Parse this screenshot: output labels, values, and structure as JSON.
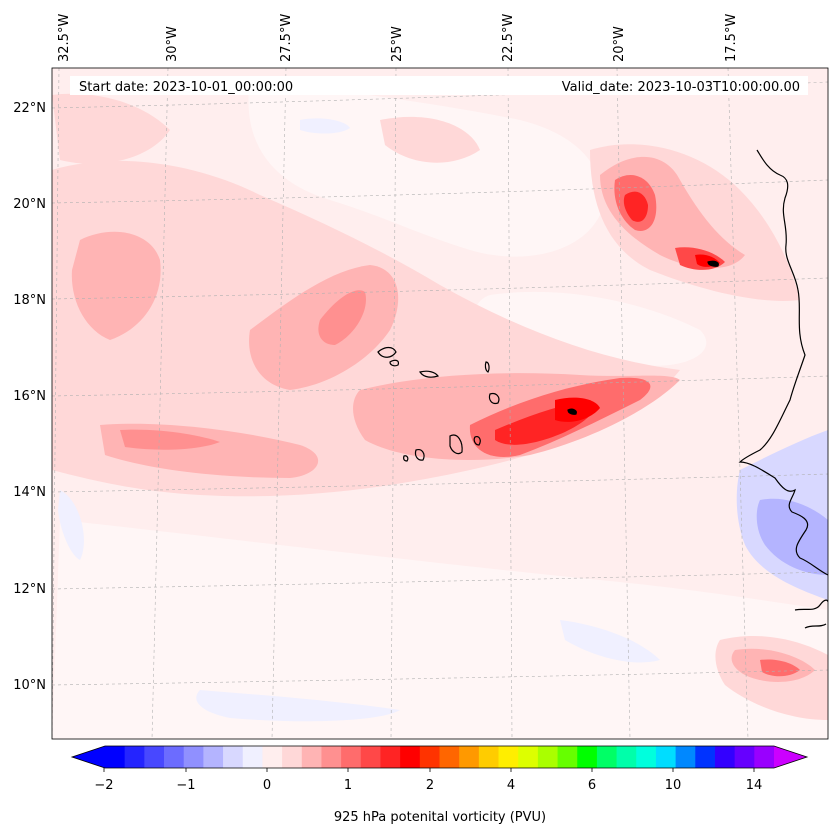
{
  "map": {
    "start_label": "Start date: 2023-10-01_00:00:00",
    "valid_label": "Valid_date: 2023-10-03T10:00:00.00",
    "lon_labels": [
      "32.5°W",
      "30°W",
      "27.5°W",
      "25°W",
      "22.5°W",
      "20°W",
      "17.5°W"
    ],
    "lat_labels": [
      "22°N",
      "20°N",
      "18°N",
      "16°N",
      "14°N",
      "12°N",
      "10°N"
    ],
    "extent": {
      "lon_min": -32.7,
      "lon_max": -15.1,
      "lat_min": 8.9,
      "lat_max": 22.8
    }
  },
  "colorbar": {
    "label": "925 hPa potenital vorticity (PVU)",
    "tick_labels": [
      "−2",
      "−1",
      "0",
      "1",
      "2",
      "4",
      "6",
      "10",
      "14"
    ],
    "colors": [
      "#0000ff",
      "#2424ff",
      "#4848ff",
      "#6c6cff",
      "#9090ff",
      "#b4b4ff",
      "#d8d8ff",
      "#f0f0ff",
      "#ffeeee",
      "#ffd8d8",
      "#ffb4b4",
      "#ff9090",
      "#ff6c6c",
      "#ff4848",
      "#ff2424",
      "#ff0000",
      "#ff3300",
      "#ff6600",
      "#ff9900",
      "#ffcc00",
      "#ffee00",
      "#ddff00",
      "#aaff00",
      "#66ff00",
      "#00ff00",
      "#00ff66",
      "#00ffaa",
      "#00ffdd",
      "#00ddff",
      "#0088ff",
      "#0033ff",
      "#3300ff",
      "#6600ff",
      "#9900ff"
    ],
    "low_color": "#0000ff",
    "high_color": "#cc00ff"
  }
}
